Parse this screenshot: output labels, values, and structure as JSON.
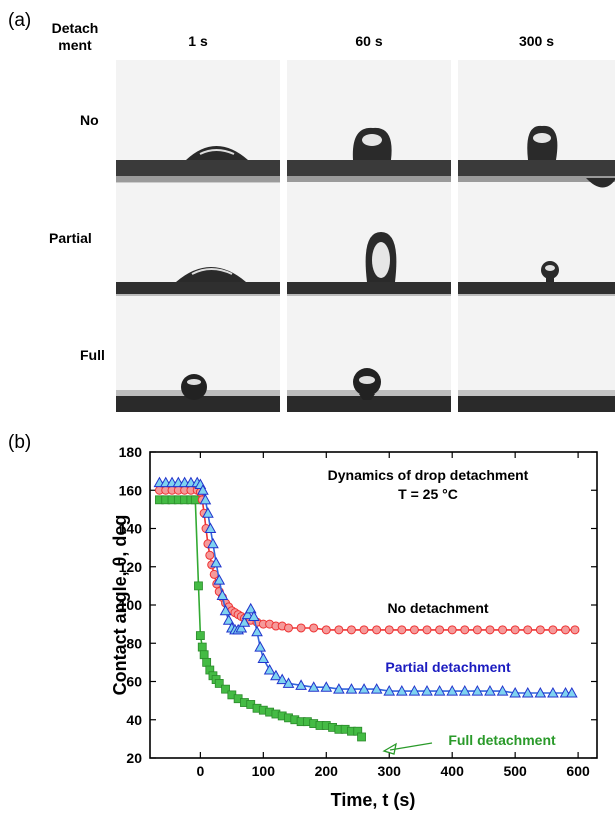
{
  "panel_a": {
    "label": "(a)",
    "row_header": "Detach ment",
    "row_header_lines": [
      "Detach",
      "ment"
    ],
    "columns": [
      "1 s",
      "60 s",
      "300 s"
    ],
    "rows": [
      "No",
      "Partial",
      "Full"
    ]
  },
  "panel_b": {
    "label": "(b)"
  },
  "chart_data": {
    "type": "scatter",
    "xlabel": "Time, t (s)",
    "ylabel": "Contact angle, θ, deg",
    "xlim": [
      -80,
      630
    ],
    "ylim": [
      20,
      180
    ],
    "xticks": [
      0,
      100,
      200,
      300,
      400,
      500,
      600
    ],
    "yticks": [
      20,
      40,
      60,
      80,
      100,
      120,
      140,
      160,
      180
    ],
    "grid": false,
    "annotations": [
      {
        "text": "Dynamics of drop detachment"
      },
      {
        "text": "T = 25 °C"
      }
    ],
    "series": [
      {
        "name": "No detachment",
        "marker": "circle",
        "color": "#ee3333",
        "x": [
          -65,
          -55,
          -45,
          -35,
          -25,
          -15,
          -5,
          0,
          3,
          6,
          9,
          12,
          15,
          18,
          22,
          26,
          30,
          35,
          40,
          45,
          50,
          55,
          60,
          65,
          70,
          75,
          80,
          90,
          100,
          110,
          120,
          130,
          140,
          160,
          180,
          200,
          220,
          240,
          260,
          280,
          300,
          320,
          340,
          360,
          380,
          400,
          420,
          440,
          460,
          480,
          500,
          520,
          540,
          560,
          580,
          595
        ],
        "y": [
          160,
          160,
          160,
          160,
          160,
          160,
          160,
          159,
          155,
          148,
          140,
          132,
          126,
          121,
          116,
          111,
          107,
          104,
          101,
          99,
          97,
          96,
          95,
          94,
          93,
          93,
          92,
          91,
          90,
          90,
          89,
          89,
          88,
          88,
          88,
          87,
          87,
          87,
          87,
          87,
          87,
          87,
          87,
          87,
          87,
          87,
          87,
          87,
          87,
          87,
          87,
          87,
          87,
          87,
          87,
          87
        ]
      },
      {
        "name": "Partial detachment",
        "marker": "triangle",
        "color": "#3366dd",
        "x": [
          -65,
          -55,
          -45,
          -35,
          -25,
          -15,
          -5,
          0,
          4,
          8,
          12,
          16,
          20,
          25,
          30,
          35,
          40,
          45,
          50,
          55,
          60,
          65,
          70,
          75,
          80,
          85,
          90,
          95,
          100,
          110,
          120,
          130,
          140,
          160,
          180,
          200,
          220,
          240,
          260,
          280,
          300,
          320,
          340,
          360,
          380,
          400,
          420,
          440,
          460,
          480,
          500,
          520,
          540,
          560,
          580,
          590
        ],
        "y": [
          164,
          164,
          164,
          164,
          164,
          164,
          164,
          163,
          160,
          155,
          148,
          140,
          132,
          122,
          113,
          105,
          97,
          92,
          88,
          87,
          87,
          88,
          91,
          95,
          98,
          94,
          86,
          78,
          72,
          66,
          63,
          61,
          59,
          58,
          57,
          57,
          56,
          56,
          56,
          56,
          55,
          55,
          55,
          55,
          55,
          55,
          55,
          55,
          55,
          55,
          54,
          54,
          54,
          54,
          54,
          54
        ]
      },
      {
        "name": "Full detachment",
        "marker": "square",
        "color": "#33aa33",
        "x": [
          -65,
          -55,
          -45,
          -35,
          -25,
          -15,
          -8,
          -3,
          0,
          3,
          6,
          10,
          15,
          20,
          25,
          30,
          40,
          50,
          60,
          70,
          80,
          90,
          100,
          110,
          120,
          130,
          140,
          150,
          160,
          170,
          180,
          190,
          200,
          210,
          220,
          230,
          240,
          250,
          256
        ],
        "y": [
          155,
          155,
          155,
          155,
          155,
          155,
          155,
          110,
          84,
          78,
          74,
          70,
          66,
          63,
          61,
          59,
          56,
          53,
          51,
          49,
          48,
          46,
          45,
          44,
          43,
          42,
          41,
          40,
          39,
          39,
          38,
          37,
          37,
          36,
          35,
          35,
          34,
          34,
          31
        ]
      }
    ],
    "series_labels": [
      {
        "text": "No detachment",
        "color": "#000000"
      },
      {
        "text": "Partial detachment",
        "color": "#1c1cc0"
      },
      {
        "text": "Full detachment",
        "color": "#2a9a2a"
      }
    ]
  }
}
